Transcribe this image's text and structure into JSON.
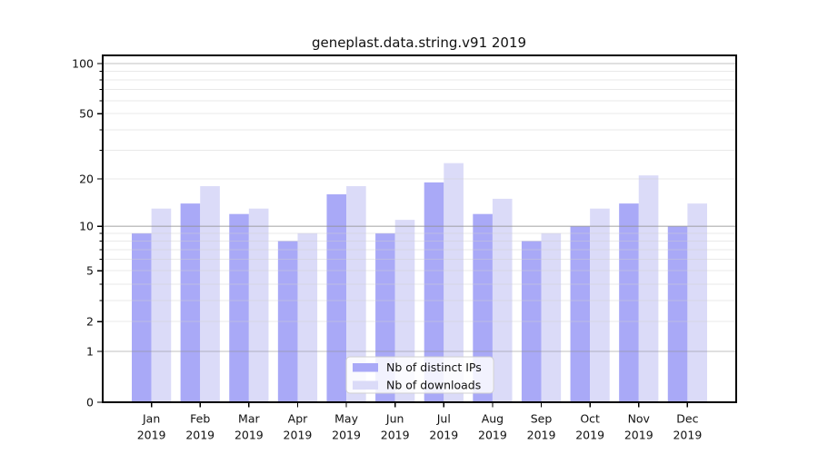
{
  "chart_data": {
    "type": "bar",
    "title": "geneplast.data.string.v91 2019",
    "categories": [
      "Jan",
      "Feb",
      "Mar",
      "Apr",
      "May",
      "Jun",
      "Jul",
      "Aug",
      "Sep",
      "Oct",
      "Nov",
      "Dec"
    ],
    "x_sub_label": "2019",
    "series": [
      {
        "name": "Nb of distinct IPs",
        "color": "#a9a9f7",
        "values": [
          9,
          14,
          12,
          8,
          16,
          9,
          19,
          12,
          8,
          10,
          14,
          10
        ]
      },
      {
        "name": "Nb of downloads",
        "color": "#dbdbf8",
        "values": [
          13,
          18,
          13,
          9,
          18,
          11,
          25,
          15,
          9,
          13,
          21,
          14
        ]
      }
    ],
    "y_scale": "log10(1+y)",
    "ylim": [
      0,
      110
    ],
    "y_labeled_ticks": [
      100,
      50,
      20,
      10,
      5,
      2,
      1,
      0
    ],
    "y_major_gridlines": [
      1,
      10,
      100
    ],
    "y_minor_gridlines": [
      2,
      3,
      4,
      5,
      6,
      7,
      8,
      9,
      20,
      30,
      40,
      50,
      60,
      70,
      80,
      90
    ],
    "grid": true,
    "legend_position": "lower center",
    "colors": {
      "major_grid": "#8f8f8f",
      "minor_grid": "#cfcfcf",
      "axis": "#000000",
      "legend_border": "#d0d0d0"
    }
  }
}
